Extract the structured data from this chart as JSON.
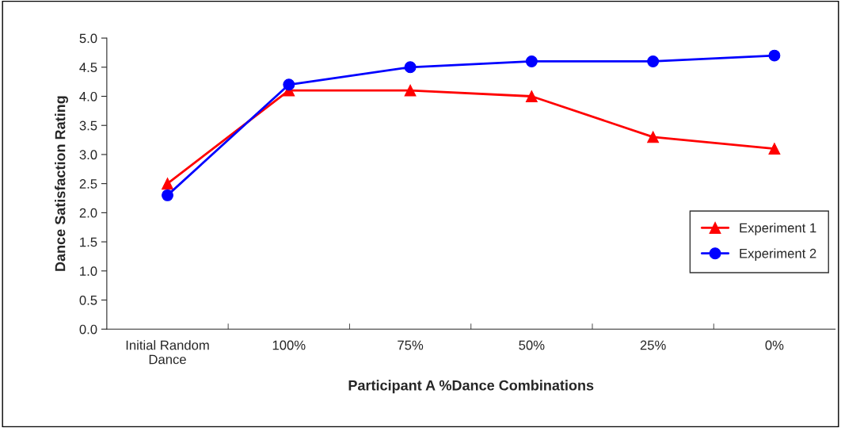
{
  "chart_data": {
    "type": "line",
    "xlabel": "Participant A %Dance Combinations",
    "ylabel": "Dance Satisfaction Rating",
    "categories": [
      "Initial Random\nDance",
      "100%",
      "75%",
      "50%",
      "25%",
      "0%"
    ],
    "series": [
      {
        "name": "Experiment 1",
        "color": "#ff0000",
        "marker": "triangle",
        "values": [
          2.5,
          4.1,
          4.1,
          4.0,
          3.3,
          3.1
        ]
      },
      {
        "name": "Experiment 2",
        "color": "#0000ff",
        "marker": "circle",
        "values": [
          2.3,
          4.2,
          4.5,
          4.6,
          4.6,
          4.7
        ]
      }
    ],
    "ylim": [
      0,
      5
    ],
    "yticks": [
      {
        "value": 0,
        "label": "0.0"
      },
      {
        "value": 0.5,
        "label": "0.5"
      },
      {
        "value": 1,
        "label": "1.0"
      },
      {
        "value": 1.5,
        "label": "1.5"
      },
      {
        "value": 2,
        "label": "2.0"
      },
      {
        "value": 2.5,
        "label": "2.5"
      },
      {
        "value": 3,
        "label": "3.0"
      },
      {
        "value": 3.5,
        "label": "3.5"
      },
      {
        "value": 4,
        "label": "4.0"
      },
      {
        "value": 4.5,
        "label": "4.5"
      },
      {
        "value": 5,
        "label": "5.0"
      }
    ],
    "grid": false,
    "legend": "right",
    "line_style": "solid"
  }
}
